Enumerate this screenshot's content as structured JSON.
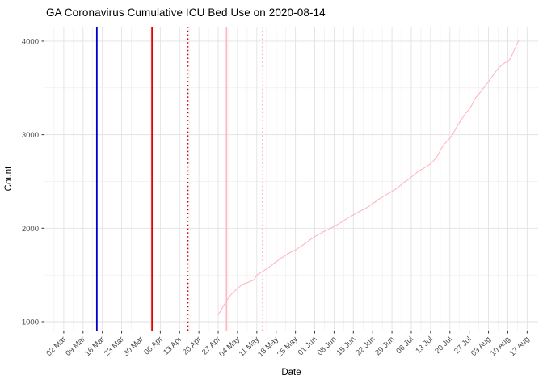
{
  "title": "GA Coronavirus Cumulative ICU Bed Use on 2020-08-14",
  "colors": {
    "background": "#ffffff",
    "grid_major": "#e2e2e2",
    "grid_minor": "#efefef",
    "axis_text": "#4d4d4d",
    "axis_title": "#000000",
    "tick_mark": "#333333",
    "series_line": "#ffb6c1",
    "vline_blue": "#0000cc",
    "vline_red": "#e60000",
    "vline_red_dotted": "#cc0000",
    "vline_pink": "#ffb6c1"
  },
  "chart_data": {
    "type": "line",
    "title": "GA Coronavirus Cumulative ICU Bed Use on 2020-08-14",
    "xlabel": "Date",
    "ylabel": "Count",
    "legend": "none",
    "grid": "on",
    "x_domain": [
      "2020-02-24",
      "2020-08-21"
    ],
    "ylim": [
      905,
      4155
    ],
    "y_tick_values": [
      1000,
      2000,
      3000,
      4000
    ],
    "y_minor_values": [
      1500,
      2500,
      3500
    ],
    "x_tick_dates": [
      "2020-03-02",
      "2020-03-09",
      "2020-03-16",
      "2020-03-23",
      "2020-03-30",
      "2020-04-06",
      "2020-04-13",
      "2020-04-20",
      "2020-04-27",
      "2020-05-04",
      "2020-05-11",
      "2020-05-18",
      "2020-05-25",
      "2020-06-01",
      "2020-06-08",
      "2020-06-15",
      "2020-06-22",
      "2020-06-29",
      "2020-07-06",
      "2020-07-13",
      "2020-07-20",
      "2020-07-27",
      "2020-08-03",
      "2020-08-10",
      "2020-08-17"
    ],
    "x_tick_labels": [
      "02 Mar",
      "09 Mar",
      "16 Mar",
      "23 Mar",
      "30 Mar",
      "06 Apr",
      "13 Apr",
      "20 Apr",
      "27 Apr",
      "04 May",
      "11 May",
      "18 May",
      "25 May",
      "01 Jun",
      "08 Jun",
      "15 Jun",
      "22 Jun",
      "29 Jun",
      "06 Jul",
      "13 Jul",
      "20 Jul",
      "27 Jul",
      "03 Aug",
      "10 Aug",
      "17 Aug"
    ],
    "vlines": [
      {
        "date": "2020-03-14",
        "color": "#0000cc",
        "style": "solid",
        "width": 1.8,
        "name": "vline-blue-solid"
      },
      {
        "date": "2020-04-03",
        "color": "#e60000",
        "style": "solid",
        "width": 1.8,
        "name": "vline-red-solid"
      },
      {
        "date": "2020-04-16",
        "color": "#cc0000",
        "style": "dotted",
        "width": 1.6,
        "name": "vline-red-dotted"
      },
      {
        "date": "2020-04-30",
        "color": "#ffb6c1",
        "style": "solid",
        "width": 1.6,
        "name": "vline-pink-solid"
      },
      {
        "date": "2020-05-13",
        "color": "#ffb6c1",
        "style": "dotted",
        "width": 1.4,
        "name": "vline-pink-dotted"
      }
    ],
    "series": [
      {
        "name": "cumulative-icu-bed-use",
        "color": "#ffb6c1",
        "start_date": "2020-04-27",
        "frequency": "daily",
        "values": [
          1075,
          1120,
          1175,
          1225,
          1265,
          1300,
          1330,
          1355,
          1380,
          1400,
          1412,
          1422,
          1435,
          1448,
          1500,
          1518,
          1535,
          1555,
          1575,
          1595,
          1618,
          1640,
          1662,
          1682,
          1702,
          1722,
          1738,
          1752,
          1766,
          1786,
          1806,
          1826,
          1848,
          1870,
          1890,
          1910,
          1926,
          1944,
          1960,
          1974,
          1986,
          2002,
          2020,
          2036,
          2052,
          2070,
          2090,
          2108,
          2125,
          2142,
          2160,
          2176,
          2190,
          2206,
          2222,
          2242,
          2262,
          2284,
          2305,
          2324,
          2342,
          2360,
          2376,
          2394,
          2410,
          2432,
          2456,
          2480,
          2502,
          2522,
          2546,
          2570,
          2595,
          2615,
          2632,
          2650,
          2668,
          2692,
          2720,
          2752,
          2800,
          2858,
          2900,
          2932,
          2962,
          3002,
          3060,
          3110,
          3152,
          3200,
          3240,
          3272,
          3320,
          3380,
          3420,
          3452,
          3490,
          3530,
          3568,
          3608,
          3648,
          3690,
          3722,
          3750,
          3770,
          3778,
          3820,
          3882,
          3950,
          4010
        ]
      }
    ]
  }
}
